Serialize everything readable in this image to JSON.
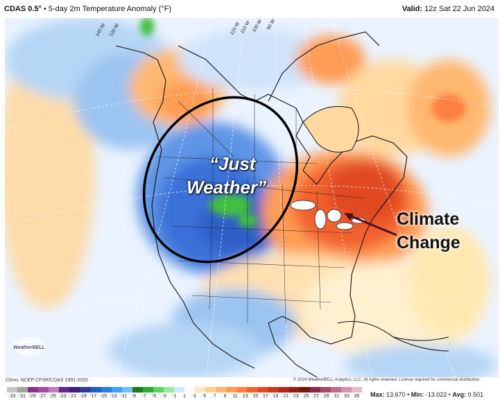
{
  "header": {
    "model": "CDAS 0.5°",
    "product": " • 5-day 2m Temperature Anomaly (°F)",
    "valid_label": "Valid:",
    "valid_time": " 12z Sat 22 Jun 2024"
  },
  "map": {
    "longitude_labels": [
      "140 W",
      "130 W",
      "120 W",
      "110 W",
      "100 W",
      "90 W"
    ],
    "annotations": {
      "just_weather_line1": "“Just",
      "just_weather_line2": "Weather”",
      "climate_line1": "Climate",
      "climate_line2": "Change"
    },
    "logo": "WeatherBELL",
    "colors": {
      "cold": "#3a6fd8",
      "cool": "#9cc4f0",
      "neutral": "#ffffff",
      "warm": "#ffd9a0",
      "hot": "#e8491e",
      "very_cold": "#3fbf3f"
    }
  },
  "footer": {
    "climo": "Climo: NCEP CFSR/CDAS 1991-2020",
    "copyright": "© 2024 WeatherBELL Analytics, LLC. All rights reserved. License required for commercial distribution.",
    "colorbar_ticks": [
      "-33",
      "-31",
      "-29",
      "-27",
      "-25",
      "-23",
      "-21",
      "-19",
      "-17",
      "-15",
      "-13",
      "-11",
      "-9",
      "-7",
      "-5",
      "-3",
      "-1",
      "1",
      "3",
      "5",
      "7",
      "9",
      "11",
      "13",
      "15",
      "17",
      "19",
      "21",
      "23",
      "25",
      "27",
      "29",
      "31",
      "33",
      "35"
    ],
    "colorbar_colors": [
      "#c7c7c7",
      "#a3a3a3",
      "#8c2f8c",
      "#a64ca6",
      "#c27cc2",
      "#5b2a8a",
      "#3b1f7a",
      "#2e3a9a",
      "#1f5fbf",
      "#2b7be0",
      "#3fa0ff",
      "#6cc0ff",
      "#1e7a1e",
      "#2eaa2e",
      "#5fd35f",
      "#9ce89c",
      "#cfe8ff",
      "#ffffff",
      "#ffe8c0",
      "#ffd090",
      "#ffb870",
      "#ff9c55",
      "#ff7f3f",
      "#f2612e",
      "#e04a22",
      "#c8381a",
      "#b02818",
      "#961c14",
      "#7a1410",
      "#8a2a4a",
      "#a24a6a",
      "#bc6c8c",
      "#d392ad",
      "#e8b8cc"
    ],
    "max_label": "Max:",
    "max_value": "13.670",
    "min_label": "Min:",
    "min_value": "-13.022",
    "avg_label": "Avg:",
    "avg_value": "0.501"
  }
}
